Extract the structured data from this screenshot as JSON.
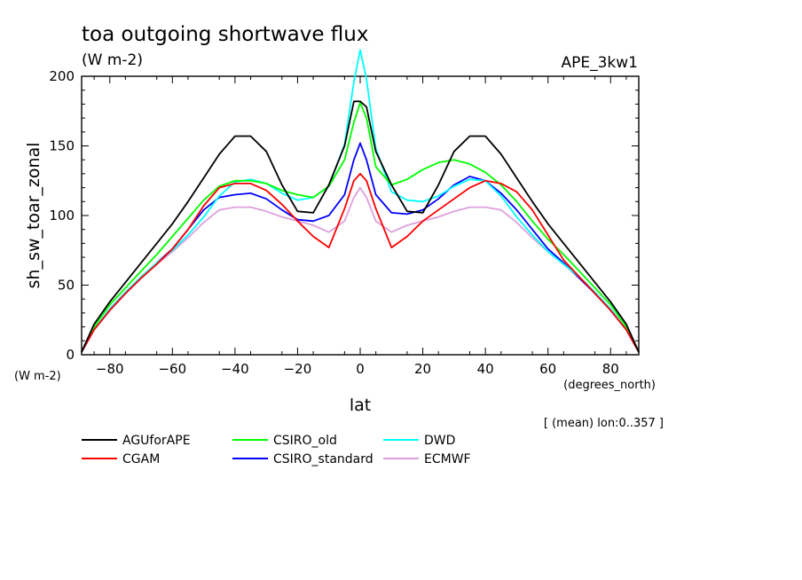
{
  "header": {
    "title": "toa outgoing shortwave flux",
    "units": "(W m-2)",
    "experiment": "APE_3kw1"
  },
  "footer": {
    "average_note": "[ (mean) lon:0..357 ]",
    "y_unit_corner": "(W m-2)",
    "x_unit": "(degrees_north)"
  },
  "chart_data": {
    "type": "line",
    "title": "toa outgoing shortwave flux",
    "subtitle": "(W m-2)",
    "xlabel": "lat",
    "ylabel": "sh_sw_toar_zonal",
    "xlim": [
      -89,
      89
    ],
    "ylim": [
      0,
      200
    ],
    "xticks": [
      -80,
      -60,
      -40,
      -20,
      0,
      20,
      40,
      60,
      80
    ],
    "yticks": [
      0,
      50,
      100,
      150,
      200
    ],
    "x": [
      -89,
      -85,
      -80,
      -75,
      -70,
      -65,
      -60,
      -55,
      -50,
      -45,
      -40,
      -35,
      -30,
      -25,
      -20,
      -15,
      -10,
      -5,
      -2,
      0,
      2,
      5,
      10,
      15,
      20,
      25,
      30,
      35,
      40,
      45,
      50,
      55,
      60,
      65,
      70,
      75,
      80,
      85,
      89
    ],
    "series": [
      {
        "name": "AGUforAPE",
        "color": "#000000",
        "values": [
          2,
          22,
          38,
          52,
          66,
          80,
          94,
          110,
          127,
          144,
          157,
          157,
          146,
          122,
          103,
          102,
          122,
          150,
          182,
          182,
          178,
          146,
          122,
          103,
          102,
          122,
          146,
          157,
          157,
          144,
          127,
          110,
          94,
          80,
          66,
          52,
          38,
          22,
          2
        ]
      },
      {
        "name": "CGAM",
        "color": "#ff0000",
        "values": [
          2,
          18,
          32,
          44,
          55,
          65,
          76,
          90,
          107,
          120,
          123,
          123,
          118,
          108,
          96,
          85,
          77,
          105,
          125,
          130,
          125,
          105,
          77,
          85,
          96,
          104,
          112,
          120,
          125,
          123,
          117,
          104,
          86,
          68,
          56,
          44,
          32,
          18,
          2
        ]
      },
      {
        "name": "CSIRO_old",
        "color": "#00ff00",
        "values": [
          2,
          20,
          36,
          48,
          60,
          72,
          85,
          98,
          111,
          121,
          125,
          125,
          123,
          118,
          115,
          113,
          121,
          140,
          167,
          181,
          170,
          135,
          122,
          126,
          133,
          138,
          140,
          137,
          131,
          122,
          110,
          96,
          83,
          72,
          60,
          48,
          36,
          20,
          2
        ]
      },
      {
        "name": "DWD",
        "color": "#00ffff",
        "values": [
          2,
          18,
          33,
          45,
          56,
          66,
          75,
          86,
          99,
          114,
          124,
          126,
          123,
          116,
          111,
          113,
          121,
          151,
          196,
          219,
          198,
          148,
          117,
          111,
          110,
          114,
          121,
          126,
          125,
          114,
          99,
          86,
          74,
          65,
          56,
          45,
          33,
          18,
          2
        ]
      },
      {
        "name": "CSIRO_standard",
        "color": "#0000ff",
        "values": [
          2,
          18,
          32,
          44,
          55,
          66,
          76,
          90,
          104,
          113,
          115,
          116,
          112,
          104,
          97,
          96,
          100,
          115,
          140,
          152,
          140,
          115,
          102,
          101,
          104,
          112,
          122,
          128,
          125,
          116,
          104,
          90,
          76,
          66,
          55,
          44,
          32,
          18,
          2
        ]
      },
      {
        "name": "ECMWF",
        "color": "#dda0dd",
        "values": [
          2,
          18,
          32,
          44,
          55,
          65,
          74,
          84,
          95,
          104,
          106,
          106,
          103,
          99,
          96,
          93,
          88,
          96,
          113,
          120,
          113,
          96,
          88,
          93,
          96,
          99,
          103,
          106,
          106,
          104,
          95,
          84,
          74,
          65,
          55,
          44,
          32,
          18,
          2
        ]
      }
    ],
    "legend": {
      "placement": "bottom",
      "entries": [
        "AGUforAPE",
        "CSIRO_old",
        "DWD",
        "CGAM",
        "CSIRO_standard",
        "ECMWF"
      ]
    },
    "grid": false
  }
}
